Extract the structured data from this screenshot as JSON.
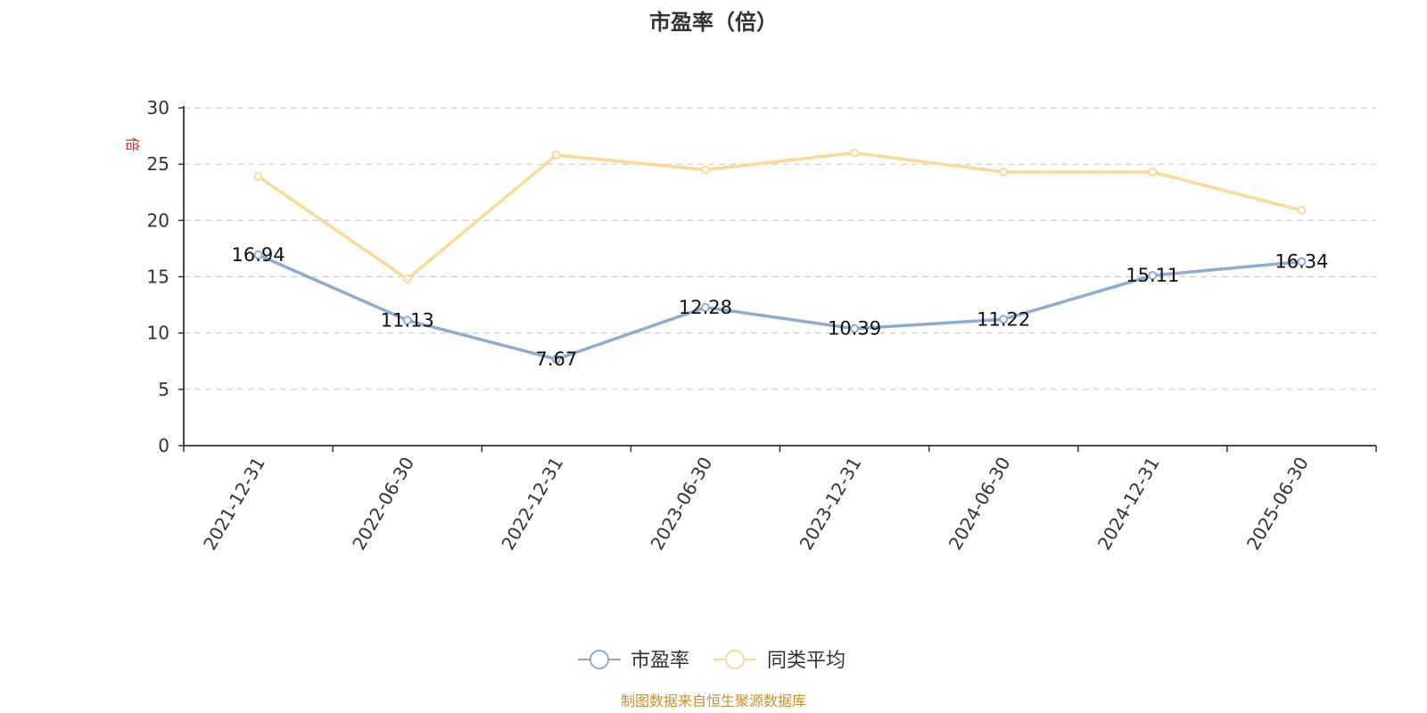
{
  "chart_data": {
    "type": "line",
    "title": "市盈率（倍）",
    "ylabel": "倍",
    "ylim": [
      0,
      30
    ],
    "yticks": [
      0,
      5,
      10,
      15,
      20,
      25,
      30
    ],
    "categories": [
      "2021-12-31",
      "2022-06-30",
      "2022-12-31",
      "2023-06-30",
      "2023-12-31",
      "2024-06-30",
      "2024-12-31",
      "2025-06-30"
    ],
    "grid": true,
    "legend_position": "bottom-center",
    "series": [
      {
        "name": "市盈率",
        "color": "#8eaad6",
        "values": [
          16.94,
          11.13,
          7.67,
          12.28,
          10.39,
          11.22,
          15.11,
          16.34
        ],
        "labels": [
          "16.94",
          "11.13",
          "7.67",
          "12.28",
          "10.39",
          "11.22",
          "15.11",
          "16.34"
        ]
      },
      {
        "name": "同类平均",
        "color": "#fcd994",
        "values": [
          23.9,
          14.8,
          25.8,
          24.5,
          26.0,
          24.3,
          24.3,
          20.9
        ]
      }
    ],
    "source_note": "制图数据来自恒生聚源数据库"
  }
}
